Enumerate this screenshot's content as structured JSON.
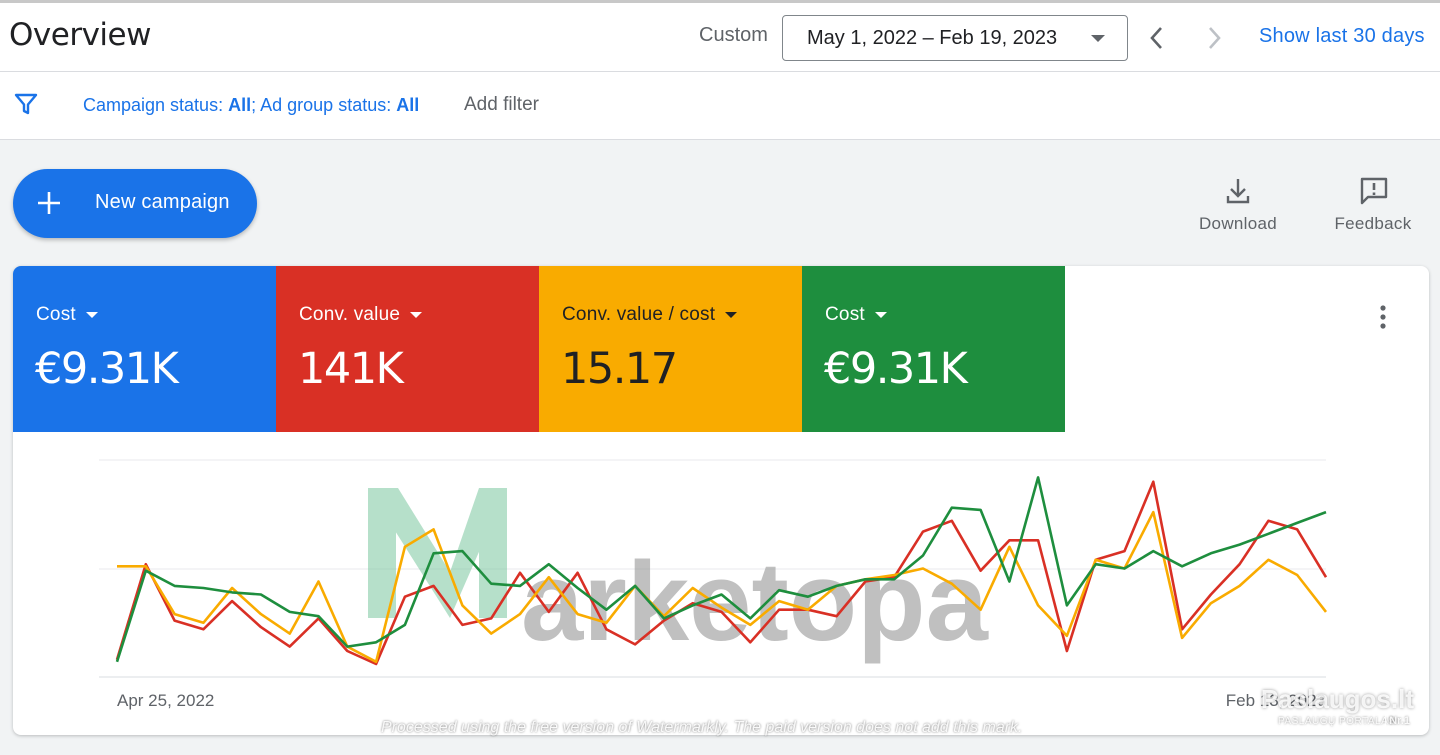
{
  "header": {
    "title": "Overview",
    "custom_label": "Custom",
    "date_range": "May 1, 2022 – Feb 19, 2023",
    "show_last_label": "Show last 30 days",
    "icons": {
      "prev": "chevron-left-icon",
      "next": "chevron-right-icon",
      "dropdown": "caret-down-icon"
    }
  },
  "filters": {
    "campaign_status_label": "Campaign status:",
    "campaign_status_value": "All",
    "separator": ";",
    "ad_group_status_label": "Ad group status:",
    "ad_group_status_value": "All",
    "add_filter_label": "Add filter",
    "icon": "filter-icon"
  },
  "actions": {
    "new_campaign_label": "New campaign",
    "download_label": "Download",
    "feedback_label": "Feedback"
  },
  "metrics": [
    {
      "label": "Cost",
      "value": "€9.31K",
      "color": "#1a73e8"
    },
    {
      "label": "Conv. value",
      "value": "141K",
      "color": "#d93025"
    },
    {
      "label": "Conv. value / cost",
      "value": "15.17",
      "color": "#f9ab00"
    },
    {
      "label": "Cost",
      "value": "€9.31K",
      "color": "#1e8e3e"
    }
  ],
  "chart_data": {
    "type": "line",
    "x_start_label": "Apr 25, 2022",
    "x_end_label": "Feb 13, 2023",
    "grid": true,
    "ylim": [
      0,
      100
    ],
    "series": [
      {
        "color": "#d93025",
        "values": [
          8,
          52,
          26,
          22,
          35,
          23,
          14,
          27,
          12,
          6,
          37,
          42,
          24,
          27,
          48,
          30,
          48,
          22,
          15,
          26,
          34,
          30,
          16,
          31,
          31,
          28,
          44,
          46,
          67,
          72,
          49,
          63,
          63,
          12,
          54,
          58,
          90,
          22,
          38,
          52,
          72,
          68,
          46
        ]
      },
      {
        "color": "#f9ab00",
        "values": [
          51,
          51,
          29,
          25,
          41,
          29,
          20,
          44,
          14,
          7,
          60,
          68,
          33,
          20,
          29,
          46,
          29,
          25,
          42,
          28,
          41,
          32,
          24,
          35,
          31,
          42,
          45,
          47,
          50,
          43,
          31,
          60,
          33,
          19,
          54,
          50,
          76,
          18,
          34,
          42,
          54,
          47,
          30
        ]
      },
      {
        "color": "#1e8e3e",
        "values": [
          7,
          49,
          42,
          41,
          39,
          38,
          30,
          28,
          14,
          16,
          24,
          57,
          58,
          43,
          42,
          52,
          41,
          31,
          42,
          27,
          33,
          38,
          27,
          40,
          37,
          42,
          45,
          45,
          56,
          78,
          77,
          44,
          92,
          33,
          52,
          50,
          58,
          51,
          57,
          61,
          66,
          71,
          76
        ]
      }
    ]
  },
  "watermark": {
    "logo_text": "arketopa",
    "caption": "Processed using the free version of Watermarkly. The paid version does not add this mark.",
    "corner_title": "Paslaugos.lt",
    "corner_sub": "PASLAUGŲ PORTALAS",
    "corner_nr": "Nr.1"
  }
}
